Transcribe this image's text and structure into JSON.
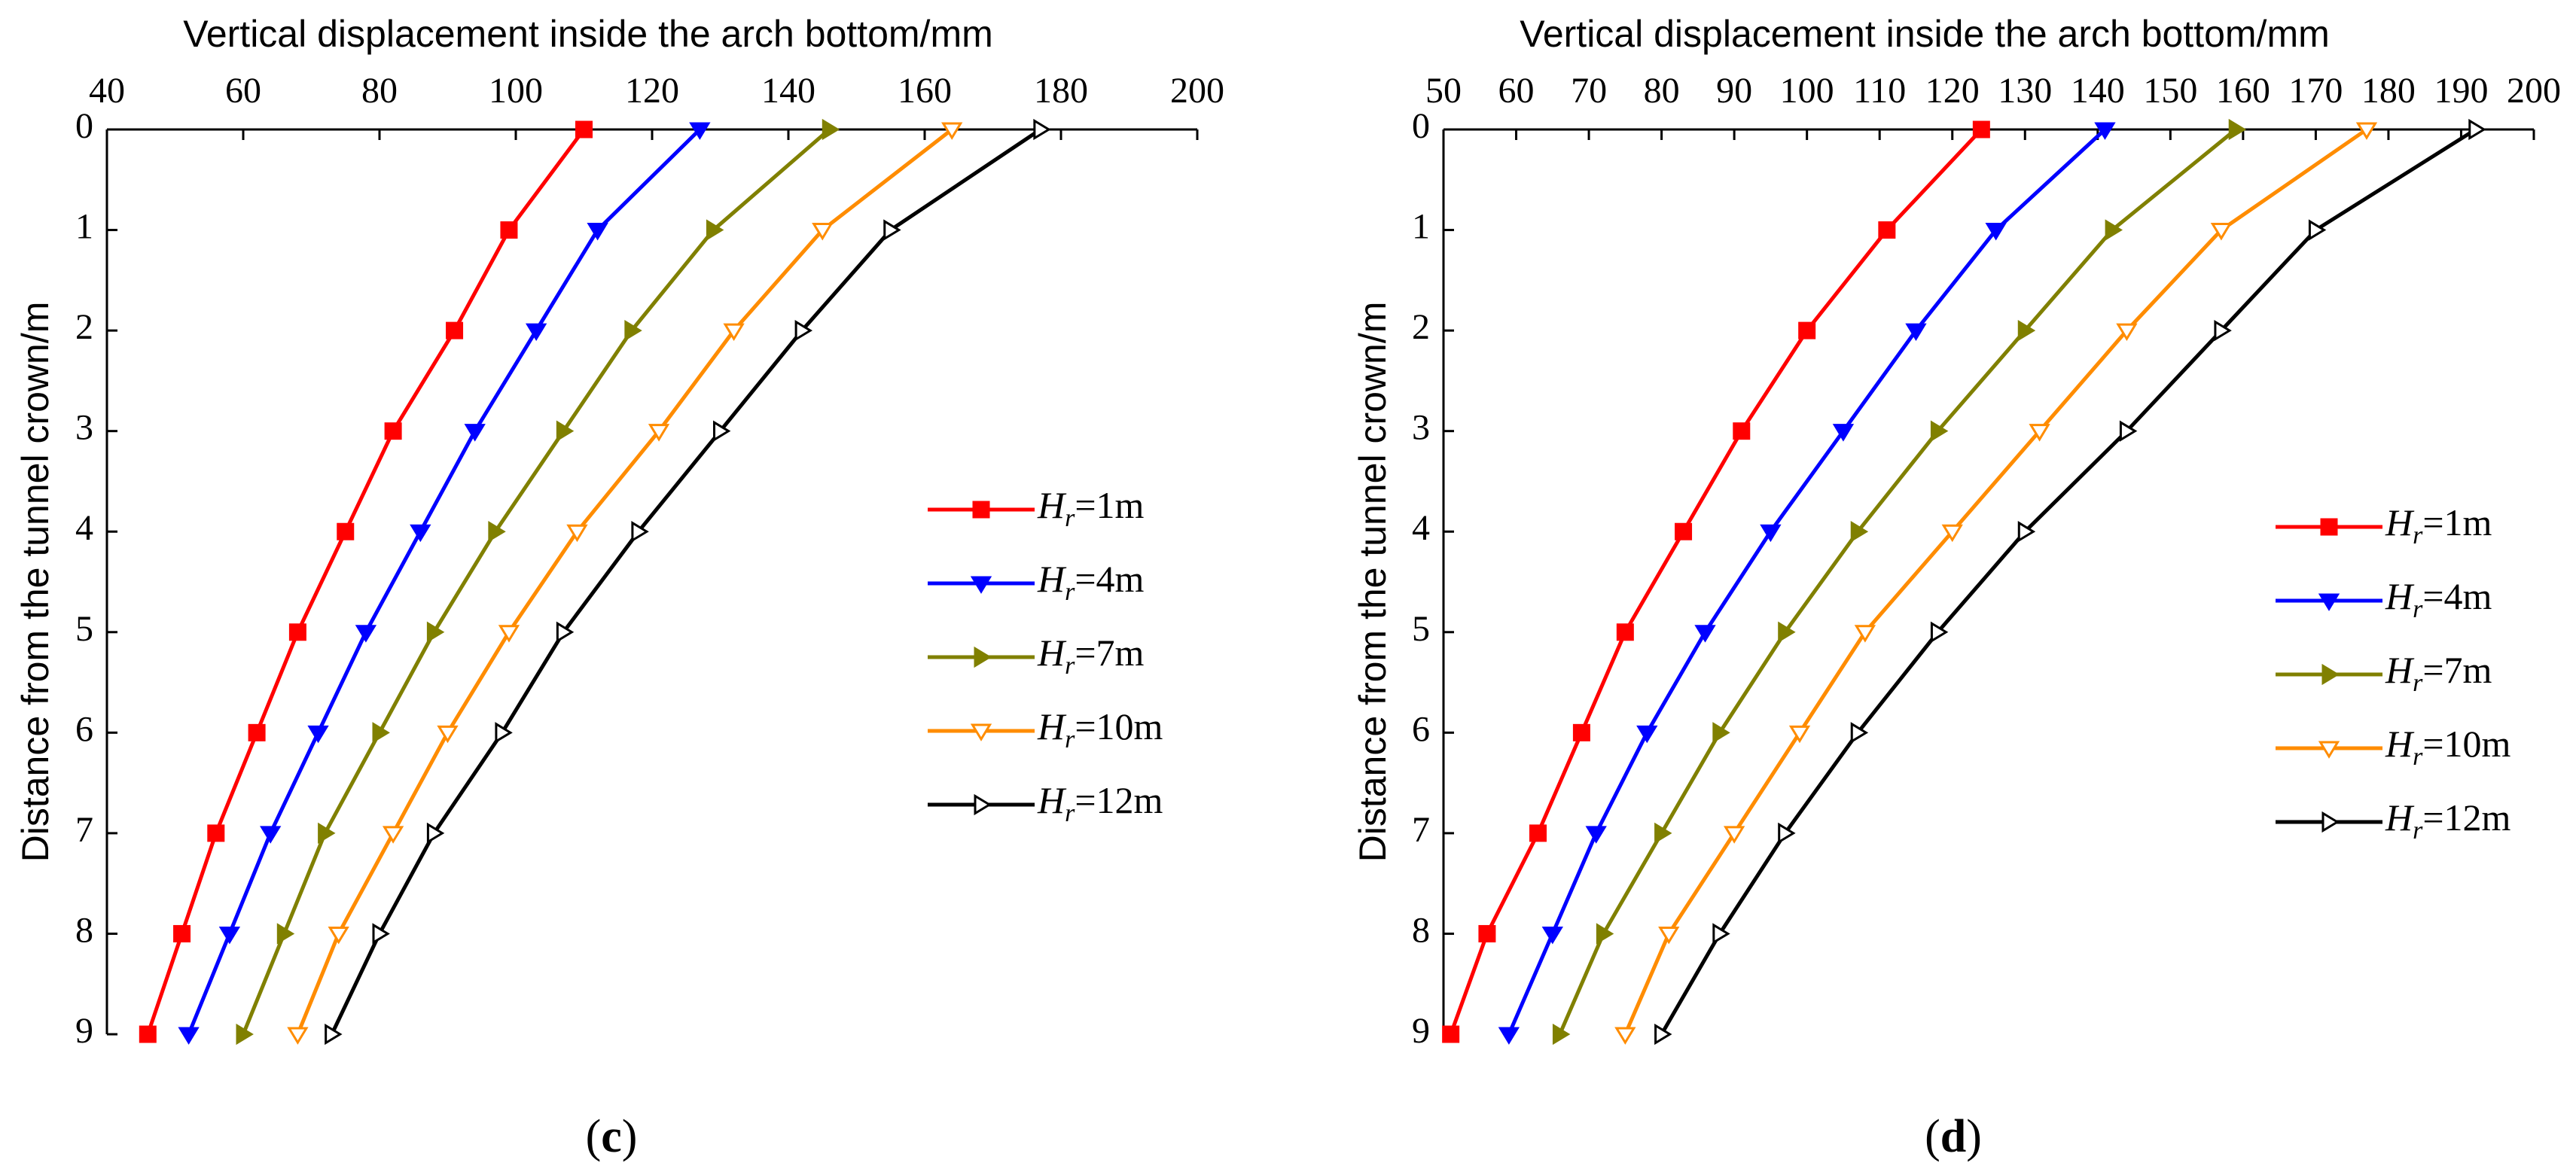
{
  "chart_data": [
    {
      "type": "line",
      "panel_label": "c",
      "xlabel": "Vertical displacement inside the arch bottom/mm",
      "ylabel": "Distance from the tunnel crown/m",
      "xlim": [
        40,
        200
      ],
      "ylim": [
        9,
        0
      ],
      "x_ticks": [
        40,
        60,
        80,
        100,
        120,
        140,
        160,
        180,
        200
      ],
      "y_ticks": [
        0,
        1,
        2,
        3,
        4,
        5,
        6,
        7,
        8,
        9
      ],
      "x_axis_position": "top",
      "y_axis_inverted": true,
      "grid": false,
      "legend_position": "right",
      "y": [
        0,
        1,
        2,
        3,
        4,
        5,
        6,
        7,
        8,
        9
      ],
      "series": [
        {
          "name_main": "H",
          "name_sub": "r",
          "name_rest": "=1m",
          "color": "#ff0000",
          "marker": "square",
          "values": [
            110,
            99,
            91,
            82,
            75,
            68,
            62,
            56,
            51,
            46
          ]
        },
        {
          "name_main": "H",
          "name_sub": "r",
          "name_rest": "=4m",
          "color": "#0000ff",
          "marker": "triangle-down",
          "values": [
            127,
            112,
            103,
            94,
            86,
            78,
            71,
            64,
            58,
            52
          ]
        },
        {
          "name_main": "H",
          "name_sub": "r",
          "name_rest": "=7m",
          "color": "#808000",
          "marker": "triangle-right",
          "values": [
            146,
            129,
            117,
            107,
            97,
            88,
            80,
            72,
            66,
            60
          ]
        },
        {
          "name_main": "H",
          "name_sub": "r",
          "name_rest": "=10m",
          "color": "#ff8c00",
          "marker": "triangle-down-open",
          "values": [
            164,
            145,
            132,
            121,
            109,
            99,
            90,
            82,
            74,
            68
          ]
        },
        {
          "name_main": "H",
          "name_sub": "r",
          "name_rest": "=12m",
          "color": "#000000",
          "marker": "triangle-right-open",
          "values": [
            177,
            155,
            142,
            130,
            118,
            107,
            98,
            88,
            80,
            73
          ]
        }
      ]
    },
    {
      "type": "line",
      "panel_label": "d",
      "xlabel": "Vertical displacement inside the arch bottom/mm",
      "ylabel": "Distance from the tunnel crown/m",
      "xlim": [
        50,
        200
      ],
      "ylim": [
        9,
        0
      ],
      "x_ticks": [
        50,
        60,
        70,
        80,
        90,
        100,
        110,
        120,
        130,
        140,
        150,
        160,
        170,
        180,
        190,
        200
      ],
      "x_tick_labels": [
        "50",
        "60",
        "70",
        "80",
        "90",
        "100",
        "110",
        "120",
        "130",
        "140",
        "150",
        "160",
        "170",
        "180",
        "190",
        "200"
      ],
      "y_ticks": [
        0,
        1,
        2,
        3,
        4,
        5,
        6,
        7,
        8,
        9
      ],
      "x_axis_position": "top",
      "y_axis_inverted": true,
      "grid": false,
      "legend_position": "right",
      "y": [
        0,
        1,
        2,
        3,
        4,
        5,
        6,
        7,
        8,
        9
      ],
      "series": [
        {
          "name_main": "H",
          "name_sub": "r",
          "name_rest": "=1m",
          "color": "#ff0000",
          "marker": "square",
          "values": [
            124,
            111,
            100,
            91,
            83,
            75,
            69,
            63,
            56,
            51
          ]
        },
        {
          "name_main": "H",
          "name_sub": "r",
          "name_rest": "=4m",
          "color": "#0000ff",
          "marker": "triangle-down",
          "values": [
            141,
            126,
            115,
            105,
            95,
            86,
            78,
            71,
            65,
            59
          ]
        },
        {
          "name_main": "H",
          "name_sub": "r",
          "name_rest": "=7m",
          "color": "#808000",
          "marker": "triangle-right",
          "values": [
            159,
            142,
            130,
            118,
            107,
            97,
            88,
            80,
            72,
            66
          ]
        },
        {
          "name_main": "H",
          "name_sub": "r",
          "name_rest": "=10m",
          "color": "#ff8c00",
          "marker": "triangle-down-open",
          "values": [
            177,
            157,
            144,
            132,
            120,
            108,
            99,
            90,
            81,
            75
          ]
        },
        {
          "name_main": "H",
          "name_sub": "r",
          "name_rest": "=12m",
          "color": "#000000",
          "marker": "triangle-right-open",
          "values": [
            192,
            170,
            157,
            144,
            130,
            118,
            107,
            97,
            88,
            80
          ]
        }
      ]
    }
  ]
}
